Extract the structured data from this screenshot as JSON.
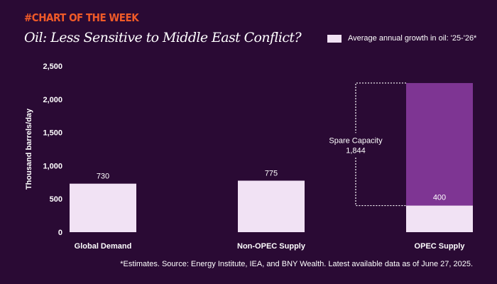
{
  "header": {
    "kicker": "#CHART OF THE WEEK",
    "title": "Oil: Less Sensitive to Middle East Conflict?"
  },
  "legend": {
    "label": "Average annual growth in oil: '25-'26*"
  },
  "footnote": "*Estimates. Source: Energy Institute, IEA, and BNY Wealth. Latest available data as of June 27, 2025.",
  "colors": {
    "background": "#2a0a34",
    "bar": "#f1e2f4",
    "spare": "#7e3593",
    "kicker": "#f05a28"
  },
  "chart_data": {
    "type": "bar",
    "title": "Oil: Less Sensitive to Middle East Conflict?",
    "ylabel": "Thousand barrels/day",
    "ylim": [
      0,
      2500
    ],
    "yticks": [
      0,
      500,
      1000,
      1500,
      2000,
      2500
    ],
    "ytick_labels": [
      "0",
      "500",
      "1,000",
      "1,500",
      "2,000",
      "2,500"
    ],
    "categories": [
      "Global Demand",
      "Non-OPEC Supply",
      "OPEC Supply"
    ],
    "series": [
      {
        "name": "Average annual growth in oil: '25-'26*",
        "values": [
          730,
          775,
          400
        ]
      }
    ],
    "value_labels": [
      "730",
      "775",
      "400"
    ],
    "stacked_extra": {
      "category": "OPEC Supply",
      "label": "Spare Capacity",
      "value": 1844,
      "value_label": "1,844"
    },
    "legend_position": "top-right",
    "grid": false
  }
}
